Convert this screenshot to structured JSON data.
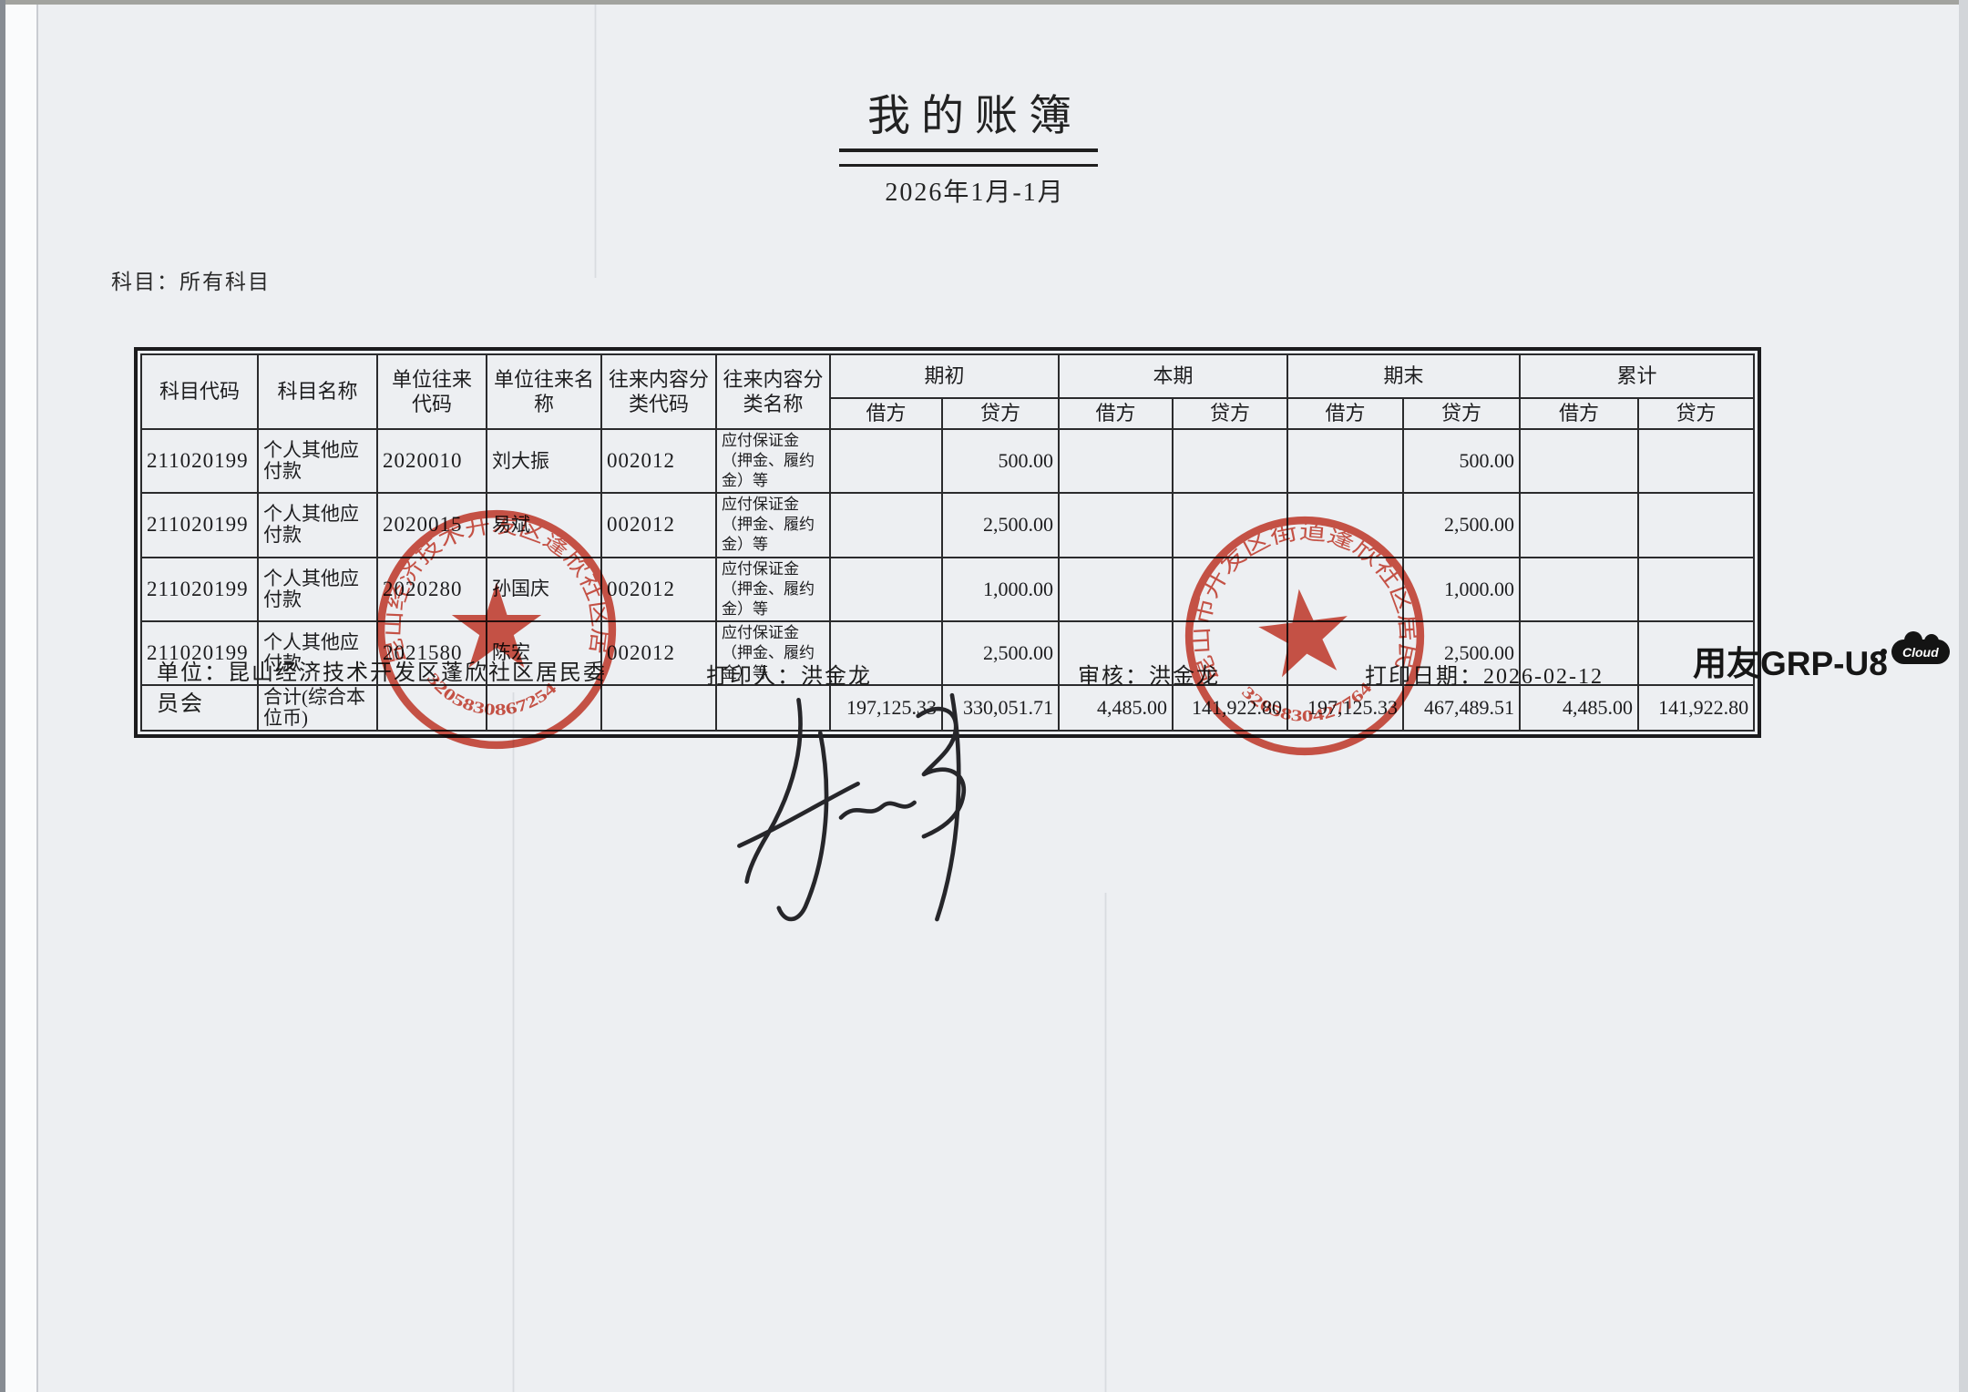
{
  "page": {
    "title": "我的账簿",
    "period": "2026年1月-1月",
    "subject_filter": "科目：所有科目"
  },
  "table": {
    "col_headers": [
      "科目代码",
      "科目名称",
      "单位往来代码",
      "单位往来名称",
      "往来内容分类代码",
      "往来内容分类名称"
    ],
    "group_headers": [
      "期初",
      "本期",
      "期末",
      "累计"
    ],
    "sub_headers": [
      "借方",
      "贷方"
    ],
    "rows": [
      [
        "211020199",
        "个人其他应付款",
        "2020010",
        "刘大振",
        "002012",
        "应付保证金（押金、履约金）等",
        "",
        "500.00",
        "",
        "",
        "",
        "500.00",
        "",
        ""
      ],
      [
        "211020199",
        "个人其他应付款",
        "2020015",
        "易斌",
        "002012",
        "应付保证金（押金、履约金）等",
        "",
        "2,500.00",
        "",
        "",
        "",
        "2,500.00",
        "",
        ""
      ],
      [
        "211020199",
        "个人其他应付款",
        "2020280",
        "孙国庆",
        "002012",
        "应付保证金（押金、履约金）等",
        "",
        "1,000.00",
        "",
        "",
        "",
        "1,000.00",
        "",
        ""
      ],
      [
        "211020199",
        "个人其他应付款",
        "2021580",
        "陈宏",
        "002012",
        "应付保证金（押金、履约金）等",
        "",
        "2,500.00",
        "",
        "",
        "",
        "2,500.00",
        "",
        ""
      ]
    ],
    "total_row": [
      "",
      "合计(综合本位币)",
      "",
      "",
      "",
      "",
      "197,125.33",
      "330,051.71",
      "4,485.00",
      "141,922.80",
      "197,125.33",
      "467,489.51",
      "4,485.00",
      "141,922.80"
    ]
  },
  "footer": {
    "unit_label": "单位：昆山经济技术开发区蓬欣社区居民委员会",
    "printer_label": "打印人：洪金龙",
    "auditor_label": "审核：洪金龙",
    "print_date_label": "打印日期：2026-02-12",
    "logo_text": "用友GRP-U8",
    "logo_badge": "Cloud"
  },
  "stamps": {
    "color": "#cb3828",
    "left": {
      "ring_text": "昆山经济技术开发区蓬欣社区居民委员会",
      "number": "3205830867254"
    },
    "right": {
      "ring_text": "昆山市开发区街道蓬欣社区居民委员会",
      "number": "3205830427764"
    }
  }
}
